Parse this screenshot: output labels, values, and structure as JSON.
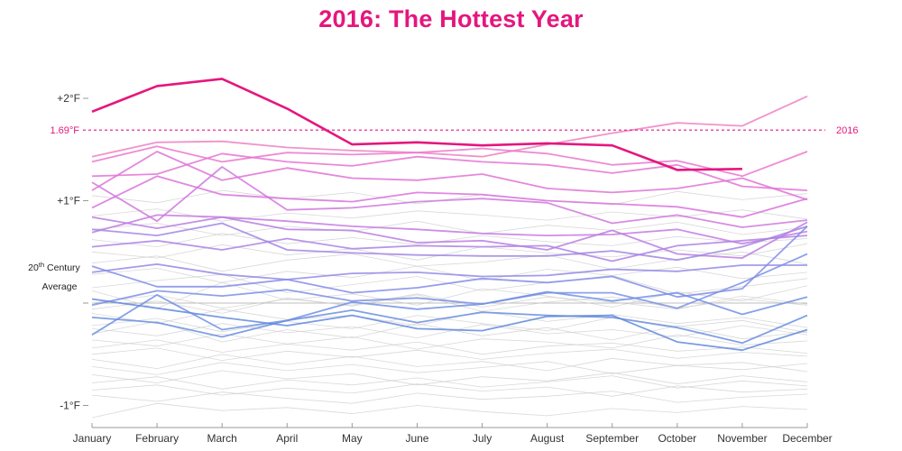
{
  "chart_data": {
    "type": "line",
    "title": "2016: The Hottest Year",
    "xlabel": "",
    "ylabel": "",
    "categories": [
      "January",
      "February",
      "March",
      "April",
      "May",
      "June",
      "July",
      "August",
      "September",
      "October",
      "November",
      "December"
    ],
    "ylim": [
      -1.25,
      2.25
    ],
    "yticks": [
      {
        "value": 2,
        "label": "+2°F"
      },
      {
        "value": 1,
        "label": "+1°F"
      },
      {
        "value": -1,
        "label": "-1°F"
      }
    ],
    "baseline": {
      "value": 0,
      "label_line1": "20th Century",
      "label_line1_sup": "th",
      "label_line1_pre": "20",
      "label_line1_post": " Century",
      "label_line2": "Average"
    },
    "reference_line": {
      "value": 1.69,
      "label": "1.69°F",
      "color": "#e5167e"
    },
    "highlight": {
      "name": "2016",
      "label": "2016",
      "color": "#e5167e",
      "values": [
        1.87,
        2.12,
        2.19,
        1.9,
        1.55,
        1.57,
        1.54,
        1.56,
        1.54,
        1.3,
        1.31,
        null
      ]
    },
    "recent_series": [
      {
        "values": [
          1.43,
          1.57,
          1.58,
          1.52,
          1.49,
          1.47,
          1.43,
          1.55,
          1.66,
          1.76,
          1.73,
          2.02
        ],
        "color": "#ee80c2"
      },
      {
        "values": [
          1.38,
          1.53,
          1.38,
          1.47,
          1.45,
          1.47,
          1.51,
          1.46,
          1.35,
          1.39,
          1.24,
          1.48
        ],
        "color": "#ea78cc"
      },
      {
        "values": [
          1.24,
          1.26,
          1.46,
          1.38,
          1.34,
          1.43,
          1.38,
          1.35,
          1.27,
          1.35,
          1.14,
          1.1
        ],
        "color": "#e474d4"
      },
      {
        "values": [
          1.1,
          1.48,
          1.2,
          1.32,
          1.22,
          1.2,
          1.26,
          1.12,
          1.08,
          1.12,
          1.22,
          1.01
        ],
        "color": "#df73d6"
      },
      {
        "values": [
          0.93,
          1.24,
          1.06,
          1.02,
          0.99,
          1.08,
          1.06,
          1.0,
          0.97,
          0.94,
          0.84,
          1.02
        ],
        "color": "#d873dc"
      },
      {
        "values": [
          1.18,
          0.8,
          1.33,
          0.91,
          0.93,
          0.99,
          1.02,
          0.98,
          0.78,
          0.86,
          0.74,
          0.81
        ],
        "color": "#d078de"
      },
      {
        "values": [
          0.69,
          0.86,
          0.84,
          0.8,
          0.75,
          0.72,
          0.68,
          0.66,
          0.67,
          0.72,
          0.58,
          0.7
        ],
        "color": "#c67ae0"
      },
      {
        "values": [
          0.84,
          0.73,
          0.84,
          0.72,
          0.71,
          0.59,
          0.61,
          0.52,
          0.71,
          0.48,
          0.44,
          0.79
        ],
        "color": "#bb7ee2"
      },
      {
        "values": [
          0.55,
          0.61,
          0.52,
          0.63,
          0.53,
          0.56,
          0.55,
          0.56,
          0.41,
          0.56,
          0.61,
          0.66
        ],
        "color": "#ad82e4"
      },
      {
        "values": [
          0.72,
          0.66,
          0.78,
          0.52,
          0.49,
          0.47,
          0.46,
          0.46,
          0.51,
          0.42,
          0.55,
          0.75
        ],
        "color": "#a286e5"
      },
      {
        "values": [
          0.3,
          0.38,
          0.28,
          0.23,
          0.29,
          0.3,
          0.26,
          0.27,
          0.33,
          0.31,
          0.37,
          0.37
        ],
        "color": "#9389e6"
      },
      {
        "values": [
          0.36,
          0.16,
          0.16,
          0.23,
          0.1,
          0.15,
          0.24,
          0.2,
          0.26,
          0.06,
          0.14,
          0.75
        ],
        "color": "#848ce7"
      },
      {
        "values": [
          -0.02,
          0.12,
          0.07,
          0.13,
          0.02,
          0.05,
          -0.01,
          0.1,
          0.1,
          -0.05,
          0.2,
          0.48
        ],
        "color": "#7b90e6"
      },
      {
        "values": [
          -0.31,
          0.08,
          -0.26,
          -0.17,
          0.01,
          -0.06,
          -0.01,
          0.11,
          0.02,
          0.1,
          -0.11,
          0.06
        ],
        "color": "#7091e4"
      },
      {
        "values": [
          -0.14,
          -0.19,
          -0.33,
          -0.17,
          -0.07,
          -0.19,
          -0.09,
          -0.12,
          -0.14,
          -0.24,
          -0.39,
          -0.12
        ],
        "color": "#6a8fe0"
      },
      {
        "values": [
          0.04,
          -0.05,
          -0.14,
          -0.22,
          -0.12,
          -0.25,
          -0.27,
          -0.13,
          -0.12,
          -0.38,
          -0.46,
          -0.26
        ],
        "color": "#6389dc"
      }
    ],
    "background_series": [
      [
        0.39,
        0.46,
        0.31,
        0.42,
        0.48,
        0.36,
        0.4,
        0.47,
        0.33,
        0.43,
        0.5,
        0.38
      ],
      [
        0.15,
        0.22,
        0.28,
        0.1,
        0.18,
        0.26,
        0.12,
        0.2,
        0.27,
        0.09,
        0.16,
        0.24
      ],
      [
        -0.06,
        0.02,
        -0.1,
        0.05,
        -0.03,
        0.08,
        -0.08,
        0.01,
        0.06,
        -0.05,
        0.04,
        -0.02
      ],
      [
        -0.22,
        -0.15,
        -0.28,
        -0.18,
        -0.25,
        -0.12,
        -0.2,
        -0.27,
        -0.14,
        -0.23,
        -0.17,
        -0.29
      ],
      [
        -0.36,
        -0.42,
        -0.3,
        -0.4,
        -0.33,
        -0.45,
        -0.35,
        -0.38,
        -0.44,
        -0.31,
        -0.41,
        -0.37
      ],
      [
        -0.5,
        -0.44,
        -0.56,
        -0.47,
        -0.53,
        -0.46,
        -0.55,
        -0.49,
        -0.45,
        -0.54,
        -0.48,
        -0.52
      ],
      [
        -0.62,
        -0.7,
        -0.58,
        -0.66,
        -0.6,
        -0.68,
        -0.63,
        -0.57,
        -0.69,
        -0.61,
        -0.65,
        -0.59
      ],
      [
        -0.78,
        -0.72,
        -0.84,
        -0.75,
        -0.8,
        -0.73,
        -0.82,
        -0.77,
        -0.71,
        -0.83,
        -0.76,
        -0.81
      ],
      [
        -0.9,
        -0.96,
        -0.87,
        -0.93,
        -0.98,
        -0.88,
        -0.94,
        -0.91,
        -0.86,
        -0.97,
        -0.92,
        -0.89
      ],
      [
        -1.12,
        -0.98,
        -1.05,
        -1.02,
        -1.08,
        -1.0,
        -1.06,
        -1.1,
        -1.03,
        -1.07,
        -1.01,
        -1.04
      ],
      [
        0.62,
        0.55,
        0.68,
        0.58,
        0.64,
        0.57,
        0.66,
        0.6,
        0.56,
        0.65,
        0.59,
        0.63
      ],
      [
        0.85,
        0.92,
        0.8,
        0.88,
        0.83,
        0.9,
        0.86,
        0.81,
        0.89,
        0.84,
        0.91,
        0.82
      ],
      [
        0.12,
        -0.05,
        0.2,
        0.03,
        0.09,
        -0.02,
        0.14,
        0.07,
        -0.04,
        0.11,
        0.02,
        0.17
      ],
      [
        -0.3,
        -0.18,
        -0.38,
        -0.26,
        -0.34,
        -0.2,
        -0.32,
        -0.24,
        -0.36,
        -0.22,
        -0.35,
        -0.28
      ],
      [
        -0.55,
        -0.64,
        -0.5,
        -0.6,
        -0.52,
        -0.62,
        -0.57,
        -0.66,
        -0.54,
        -0.61,
        -0.58,
        -0.67
      ],
      [
        0.28,
        0.34,
        0.2,
        0.31,
        0.25,
        0.36,
        0.22,
        0.33,
        0.27,
        0.35,
        0.24,
        0.3
      ],
      [
        -0.1,
        -0.2,
        -0.06,
        -0.16,
        -0.12,
        -0.22,
        -0.08,
        -0.18,
        -0.11,
        -0.2,
        -0.14,
        -0.24
      ],
      [
        -0.44,
        -0.36,
        -0.48,
        -0.4,
        -0.46,
        -0.38,
        -0.5,
        -0.42,
        -0.39,
        -0.47,
        -0.43,
        -0.49
      ],
      [
        0.5,
        0.44,
        0.57,
        0.47,
        0.53,
        0.42,
        0.55,
        0.49,
        0.45,
        0.52,
        0.46,
        0.58
      ],
      [
        -0.7,
        -0.78,
        -0.66,
        -0.74,
        -0.69,
        -0.8,
        -0.72,
        -0.76,
        -0.68,
        -0.79,
        -0.71,
        -0.77
      ],
      [
        1.05,
        0.98,
        1.1,
        1.02,
        1.08,
        0.97,
        1.06,
        1.0,
        0.96,
        1.09,
        1.01,
        1.07
      ],
      [
        0.72,
        0.78,
        0.66,
        0.75,
        0.7,
        0.8,
        0.68,
        0.76,
        0.71,
        0.79,
        0.67,
        0.74
      ],
      [
        -0.85,
        -0.8,
        -0.9,
        -0.83,
        -0.88,
        -0.79,
        -0.86,
        -0.82,
        -0.91,
        -0.81,
        -0.87,
        -0.84
      ],
      [
        0.0,
        0.08,
        -0.05,
        0.04,
        -0.02,
        0.09,
        -0.04,
        0.06,
        0.01,
        -0.06,
        0.07,
        -0.01
      ],
      [
        -0.25,
        -0.32,
        -0.2,
        -0.29,
        -0.23,
        -0.34,
        -0.21,
        -0.3,
        -0.26,
        -0.33,
        -0.22,
        -0.31
      ]
    ]
  }
}
